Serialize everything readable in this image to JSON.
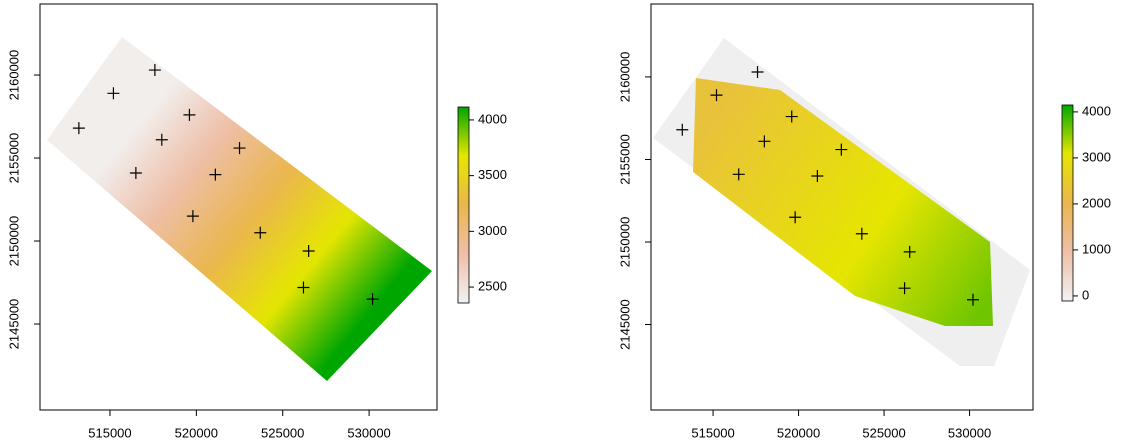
{
  "chart_data": [
    {
      "type": "raster",
      "xlim": [
        510950,
        533930
      ],
      "ylim": [
        2139820,
        2164280
      ],
      "xticks": [
        515000,
        520000,
        525000,
        530000
      ],
      "yticks": [
        2145000,
        2150000,
        2155000,
        2160000
      ],
      "x": [
        517600,
        515200,
        513200,
        519600,
        518000,
        522500,
        516500,
        521100,
        519800,
        523700,
        526500,
        526200,
        530200
      ],
      "y": [
        2160300,
        2158900,
        2156800,
        2157600,
        2156100,
        2155600,
        2154100,
        2154000,
        2151500,
        2150500,
        2149400,
        2147200,
        2146500
      ],
      "point_color": "#000000",
      "zlim": [
        2357,
        4116
      ],
      "zticks": [
        2500,
        3000,
        3500,
        4000
      ],
      "colors": [
        "#f2f2f2",
        "#eebfa8",
        "#eab64e",
        "#e6e600",
        "#00a600"
      ]
    },
    {
      "type": "raster",
      "xlim": [
        511370,
        533710
      ],
      "ylim": [
        2139820,
        2164420
      ],
      "xticks": [
        515000,
        520000,
        525000,
        530000
      ],
      "yticks": [
        2145000,
        2150000,
        2155000,
        2160000
      ],
      "x": [
        517600,
        515200,
        513200,
        519600,
        518000,
        522500,
        516500,
        521100,
        519800,
        523700,
        526500,
        526200,
        530200
      ],
      "y": [
        2160300,
        2158900,
        2156800,
        2157600,
        2156100,
        2155600,
        2154100,
        2154000,
        2151500,
        2150500,
        2149400,
        2147200,
        2146500
      ],
      "point_color": "#000000",
      "zlim": [
        -110,
        4150
      ],
      "zticks": [
        0,
        1000,
        2000,
        3000,
        4000
      ],
      "colors": [
        "#f2f2f2",
        "#eebfa8",
        "#eab64e",
        "#e6e600",
        "#00a600"
      ]
    }
  ]
}
